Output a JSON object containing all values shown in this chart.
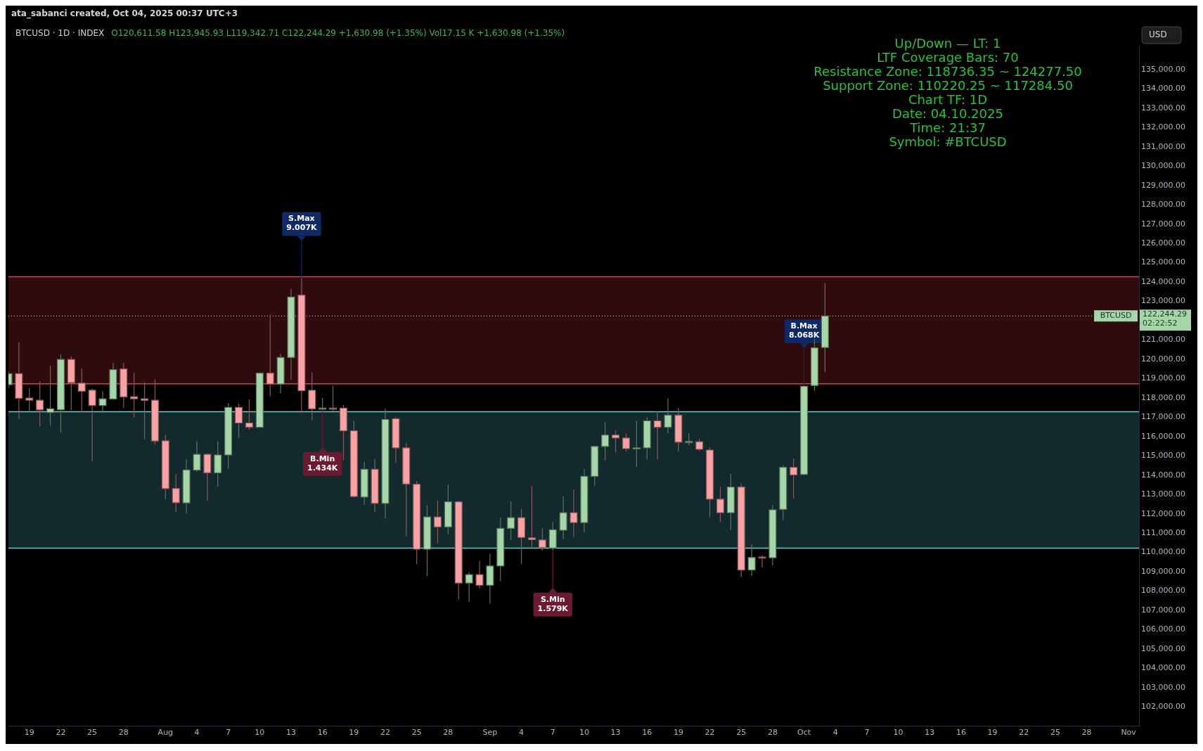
{
  "chart_data": {
    "type": "candlestick",
    "title": "BTCUSD · 1D · INDEX",
    "subtitle": "O120,611.58 H123,945.93 L119,342.71 C122,244.29 +1,630.98 (+1.35%) Vol17.15 K +1,630.98 (+1.35%)",
    "ylabel": "USD",
    "x": [
      "2025-07-17",
      "2025-07-18",
      "2025-07-19",
      "2025-07-20",
      "2025-07-21",
      "2025-07-22",
      "2025-07-23",
      "2025-07-24",
      "2025-07-25",
      "2025-07-26",
      "2025-07-27",
      "2025-07-28",
      "2025-07-29",
      "2025-07-30",
      "2025-07-31",
      "2025-08-01",
      "2025-08-02",
      "2025-08-03",
      "2025-08-04",
      "2025-08-05",
      "2025-08-06",
      "2025-08-07",
      "2025-08-08",
      "2025-08-09",
      "2025-08-10",
      "2025-08-11",
      "2025-08-12",
      "2025-08-13",
      "2025-08-14",
      "2025-08-15",
      "2025-08-16",
      "2025-08-17",
      "2025-08-18",
      "2025-08-19",
      "2025-08-20",
      "2025-08-21",
      "2025-08-22",
      "2025-08-23",
      "2025-08-24",
      "2025-08-25",
      "2025-08-26",
      "2025-08-27",
      "2025-08-28",
      "2025-08-29",
      "2025-08-30",
      "2025-08-31",
      "2025-09-01",
      "2025-09-02",
      "2025-09-03",
      "2025-09-04",
      "2025-09-05",
      "2025-09-06",
      "2025-09-07",
      "2025-09-08",
      "2025-09-09",
      "2025-09-10",
      "2025-09-11",
      "2025-09-12",
      "2025-09-13",
      "2025-09-14",
      "2025-09-15",
      "2025-09-16",
      "2025-09-17",
      "2025-09-18",
      "2025-09-19",
      "2025-09-20",
      "2025-09-21",
      "2025-09-22",
      "2025-09-23",
      "2025-09-24",
      "2025-09-25",
      "2025-09-26",
      "2025-09-27",
      "2025-09-28",
      "2025-09-29",
      "2025-09-30",
      "2025-10-01",
      "2025-10-02",
      "2025-10-03"
    ],
    "ohlc": [
      [
        118680,
        119400,
        118500,
        119258
      ],
      [
        119258,
        120879,
        116912,
        117980
      ],
      [
        117993,
        118521,
        117342,
        117882
      ],
      [
        117882,
        118852,
        116531,
        117381
      ],
      [
        117244,
        119663,
        116581,
        117440
      ],
      [
        117391,
        120252,
        116212,
        119994
      ],
      [
        119994,
        120142,
        117379,
        118791
      ],
      [
        118766,
        119515,
        117244,
        118349
      ],
      [
        118398,
        118484,
        114702,
        117612
      ],
      [
        117612,
        118337,
        117207,
        117956
      ],
      [
        117944,
        119810,
        117907,
        119466
      ],
      [
        119503,
        119810,
        117465,
        118054
      ],
      [
        118066,
        119294,
        116986,
        117956
      ],
      [
        117956,
        118816,
        115844,
        117870
      ],
      [
        117882,
        118963,
        115574,
        115770
      ],
      [
        115782,
        116089,
        112749,
        113302
      ],
      [
        113314,
        114063,
        112086,
        112577
      ],
      [
        112565,
        114837,
        112012,
        114272
      ],
      [
        114260,
        115758,
        114186,
        115082
      ],
      [
        115082,
        115132,
        112676,
        114125
      ],
      [
        114125,
        115758,
        113412,
        115046
      ],
      [
        115046,
        117710,
        114333,
        117514
      ],
      [
        117514,
        117710,
        115917,
        116703
      ],
      [
        116703,
        117931,
        116360,
        116482
      ],
      [
        116482,
        119319,
        116470,
        119282
      ],
      [
        119282,
        122315,
        118091,
        118717
      ],
      [
        118717,
        120289,
        118238,
        120093
      ],
      [
        120091,
        123640,
        118949,
        123222
      ],
      [
        123320,
        124200,
        117217,
        118371
      ],
      [
        118396,
        119329,
        116836,
        117438
      ],
      [
        117438,
        118003,
        117389,
        117475
      ],
      [
        117475,
        118629,
        117315,
        117450
      ],
      [
        117475,
        117635,
        114773,
        116296
      ],
      [
        116296,
        116824,
        112833,
        112895
      ],
      [
        112870,
        114687,
        112465,
        114307
      ],
      [
        114307,
        114835,
        112096,
        112538
      ],
      [
        112538,
        117438,
        111765,
        116886
      ],
      [
        116922,
        117008,
        114626,
        115412
      ],
      [
        115412,
        115658,
        110844,
        113545
      ],
      [
        113533,
        113693,
        109395,
        110168
      ],
      [
        110168,
        112440,
        108781,
        111838
      ],
      [
        111838,
        112698,
        110463,
        111323
      ],
      [
        111323,
        113509,
        110942,
        112624
      ],
      [
        112624,
        112661,
        107553,
        108412
      ],
      [
        108412,
        108977,
        107442,
        108854
      ],
      [
        108854,
        109567,
        108142,
        108302
      ],
      [
        108302,
        109935,
        107344,
        109297
      ],
      [
        109297,
        111814,
        108511,
        111249
      ],
      [
        111249,
        112624,
        110647,
        111802
      ],
      [
        111802,
        112256,
        109395,
        110770
      ],
      [
        110758,
        113435,
        110291,
        110660
      ],
      [
        110647,
        111261,
        110107,
        110254
      ],
      [
        110230,
        111581,
        110100,
        111175
      ],
      [
        111150,
        112895,
        110684,
        112060
      ],
      [
        112060,
        113263,
        110807,
        111544
      ],
      [
        111544,
        114319,
        111028,
        113938
      ],
      [
        113938,
        115500,
        113447,
        115486
      ],
      [
        115486,
        116750,
        114773,
        116075
      ],
      [
        116075,
        116308,
        115179,
        115928
      ],
      [
        115928,
        116161,
        115228,
        115375
      ],
      [
        115375,
        116824,
        114405,
        115412
      ],
      [
        115412,
        117008,
        114810,
        116812
      ],
      [
        116812,
        117303,
        114810,
        116480
      ],
      [
        116480,
        117966,
        116173,
        117107
      ],
      [
        117107,
        117487,
        115215,
        115707
      ],
      [
        115707,
        116186,
        115547,
        115744
      ],
      [
        115732,
        115891,
        115265,
        115338
      ],
      [
        115301,
        115449,
        111826,
        112759
      ],
      [
        112759,
        113398,
        111581,
        112060
      ],
      [
        112060,
        114061,
        111163,
        113386
      ],
      [
        113386,
        113582,
        108732,
        109088
      ],
      [
        109088,
        110414,
        108781,
        109739
      ],
      [
        109763,
        109861,
        109223,
        109726
      ],
      [
        109726,
        112440,
        109333,
        112207
      ],
      [
        112232,
        114503,
        111679,
        114405
      ],
      [
        114405,
        114859,
        112784,
        114012
      ],
      [
        114037,
        118642,
        114000,
        118605
      ],
      [
        118642,
        121061,
        118359,
        120594
      ],
      [
        120611.58,
        123945.93,
        119342.71,
        122244.29
      ]
    ],
    "colors": [
      "#a5d6a7",
      "#faa1a4",
      "#faa1a4",
      "#faa1a4",
      "#a5d6a7",
      "#a5d6a7",
      "#faa1a4",
      "#faa1a4",
      "#faa1a4",
      "#a5d6a7",
      "#a5d6a7",
      "#faa1a4",
      "#faa1a4",
      "#faa1a4",
      "#faa1a4",
      "#faa1a4",
      "#faa1a4",
      "#a5d6a7",
      "#a5d6a7",
      "#faa1a4",
      "#a5d6a7",
      "#a5d6a7",
      "#faa1a4",
      "#faa1a4",
      "#a5d6a7",
      "#faa1a4",
      "#a5d6a7",
      "#a5d6a7",
      "#faa1a4",
      "#faa1a4",
      "#a5d6a7",
      "#faa1a4",
      "#faa1a4",
      "#faa1a4",
      "#a5d6a7",
      "#faa1a4",
      "#a5d6a7",
      "#faa1a4",
      "#faa1a4",
      "#faa1a4",
      "#a5d6a7",
      "#faa1a4",
      "#a5d6a7",
      "#faa1a4",
      "#a5d6a7",
      "#faa1a4",
      "#a5d6a7",
      "#a5d6a7",
      "#a5d6a7",
      "#faa1a4",
      "#faa1a4",
      "#faa1a4",
      "#a5d6a7",
      "#a5d6a7",
      "#faa1a4",
      "#a5d6a7",
      "#a5d6a7",
      "#a5d6a7",
      "#faa1a4",
      "#faa1a4",
      "#a5d6a7",
      "#a5d6a7",
      "#faa1a4",
      "#a5d6a7",
      "#faa1a4",
      "#a5d6a7",
      "#faa1a4",
      "#faa1a4",
      "#faa1a4",
      "#a5d6a7",
      "#faa1a4",
      "#a5d6a7",
      "#faa1a4",
      "#a5d6a7",
      "#a5d6a7",
      "#faa1a4",
      "#a5d6a7",
      "#a5d6a7",
      "#a5d6a7"
    ],
    "xlim": [
      "2025-07-17",
      "2025-11-02"
    ],
    "xticks": [
      {
        "value": "2025-07-19",
        "label": "19"
      },
      {
        "value": "2025-07-22",
        "label": "22"
      },
      {
        "value": "2025-07-25",
        "label": "25"
      },
      {
        "value": "2025-07-28",
        "label": "28"
      },
      {
        "value": "2025-08-01",
        "label": "Aug"
      },
      {
        "value": "2025-08-04",
        "label": "4"
      },
      {
        "value": "2025-08-07",
        "label": "7"
      },
      {
        "value": "2025-08-10",
        "label": "10"
      },
      {
        "value": "2025-08-13",
        "label": "13"
      },
      {
        "value": "2025-08-16",
        "label": "16"
      },
      {
        "value": "2025-08-19",
        "label": "19"
      },
      {
        "value": "2025-08-22",
        "label": "22"
      },
      {
        "value": "2025-08-25",
        "label": "25"
      },
      {
        "value": "2025-08-28",
        "label": "28"
      },
      {
        "value": "2025-09-01",
        "label": "Sep"
      },
      {
        "value": "2025-09-04",
        "label": "4"
      },
      {
        "value": "2025-09-07",
        "label": "7"
      },
      {
        "value": "2025-09-10",
        "label": "10"
      },
      {
        "value": "2025-09-13",
        "label": "13"
      },
      {
        "value": "2025-09-16",
        "label": "16"
      },
      {
        "value": "2025-09-19",
        "label": "19"
      },
      {
        "value": "2025-09-22",
        "label": "22"
      },
      {
        "value": "2025-09-25",
        "label": "25"
      },
      {
        "value": "2025-09-28",
        "label": "28"
      },
      {
        "value": "2025-10-01",
        "label": "Oct"
      },
      {
        "value": "2025-10-04",
        "label": "4"
      },
      {
        "value": "2025-10-07",
        "label": "7"
      },
      {
        "value": "2025-10-10",
        "label": "10"
      },
      {
        "value": "2025-10-13",
        "label": "13"
      },
      {
        "value": "2025-10-16",
        "label": "16"
      },
      {
        "value": "2025-10-19",
        "label": "19"
      },
      {
        "value": "2025-10-22",
        "label": "22"
      },
      {
        "value": "2025-10-25",
        "label": "25"
      },
      {
        "value": "2025-10-28",
        "label": "28"
      },
      {
        "value": "2025-11-01",
        "label": "Nov"
      }
    ],
    "ylim": [
      101000,
      136200
    ],
    "yticks": [
      {
        "value": 102000,
        "label": "102,000.00"
      },
      {
        "value": 103000,
        "label": "103,000.00"
      },
      {
        "value": 104000,
        "label": "104,000.00"
      },
      {
        "value": 105000,
        "label": "105,000.00"
      },
      {
        "value": 106000,
        "label": "106,000.00"
      },
      {
        "value": 107000,
        "label": "107,000.00"
      },
      {
        "value": 108000,
        "label": "108,000.00"
      },
      {
        "value": 109000,
        "label": "109,000.00"
      },
      {
        "value": 110000,
        "label": "110,000.00"
      },
      {
        "value": 111000,
        "label": "111,000.00"
      },
      {
        "value": 112000,
        "label": "112,000.00"
      },
      {
        "value": 113000,
        "label": "113,000.00"
      },
      {
        "value": 114000,
        "label": "114,000.00"
      },
      {
        "value": 115000,
        "label": "115,000.00"
      },
      {
        "value": 116000,
        "label": "116,000.00"
      },
      {
        "value": 117000,
        "label": "117,000.00"
      },
      {
        "value": 118000,
        "label": "118,000.00"
      },
      {
        "value": 119000,
        "label": "119,000.00"
      },
      {
        "value": 120000,
        "label": "120,000.00"
      },
      {
        "value": 121000,
        "label": "121,000.00"
      },
      {
        "value": 123000,
        "label": "123,000.00"
      },
      {
        "value": 124000,
        "label": "124,000.00"
      },
      {
        "value": 125000,
        "label": "125,000.00"
      },
      {
        "value": 126000,
        "label": "126,000.00"
      },
      {
        "value": 127000,
        "label": "127,000.00"
      },
      {
        "value": 128000,
        "label": "128,000.00"
      },
      {
        "value": 129000,
        "label": "129,000.00"
      },
      {
        "value": 130000,
        "label": "130,000.00"
      },
      {
        "value": 131000,
        "label": "131,000.00"
      },
      {
        "value": 132000,
        "label": "132,000.00"
      },
      {
        "value": 133000,
        "label": "133,000.00"
      },
      {
        "value": 134000,
        "label": "134,000.00"
      },
      {
        "value": 135000,
        "label": "135,000.00"
      }
    ],
    "bands": [
      {
        "axis": "y",
        "from": 118736.35,
        "to": 124277.5,
        "color": "#f23645"
      },
      {
        "axis": "y",
        "from": 110220.25,
        "to": 117284.5,
        "color": "#5ad1e0"
      }
    ],
    "ref_lines": [
      {
        "axis": "y",
        "value": 122244.29,
        "label": "122,244.29\n02:22:52",
        "color": "#d1d4dc",
        "line_style": "dotted"
      },
      {
        "axis": "y",
        "value": 124277.5,
        "color": "#f23645",
        "line_style": "solid"
      },
      {
        "axis": "y",
        "value": 118736.35,
        "color": "#f23645",
        "line_style": "solid"
      },
      {
        "axis": "y",
        "value": 117284.5,
        "color": "#5ad1e0",
        "line_style": "solid"
      },
      {
        "axis": "y",
        "value": 110220.25,
        "color": "#5ad1e0",
        "line_style": "solid"
      }
    ],
    "annotations": [
      "ata_sabanci created, Oct 04, 2025 00:37 UTC+3",
      "Up/Down — LT: 1\nLTF Coverage Bars: 70\nResistance Zone: 118736.35 ~ 124277.50\nSupport Zone: 110220.25 ~ 117284.50\nChart TF: 1D\nDate: 04.10.2025\nTime: 21:37\nSymbol: #BTCUSD",
      {
        "text": "S.Max\n9.007K",
        "x": "2025-08-14",
        "y": 124200
      },
      {
        "text": "B.Max\n8.068K",
        "x": "2025-10-01",
        "y": 118642
      },
      {
        "text": "B.Min\n1.434K",
        "x": "2025-08-16",
        "y": 117389
      },
      {
        "text": "S.Min\n1.579K",
        "x": "2025-09-07",
        "y": 110100
      },
      {
        "text": "BTCUSD",
        "y": 122244.29
      }
    ],
    "grid": false,
    "legend": false
  }
}
